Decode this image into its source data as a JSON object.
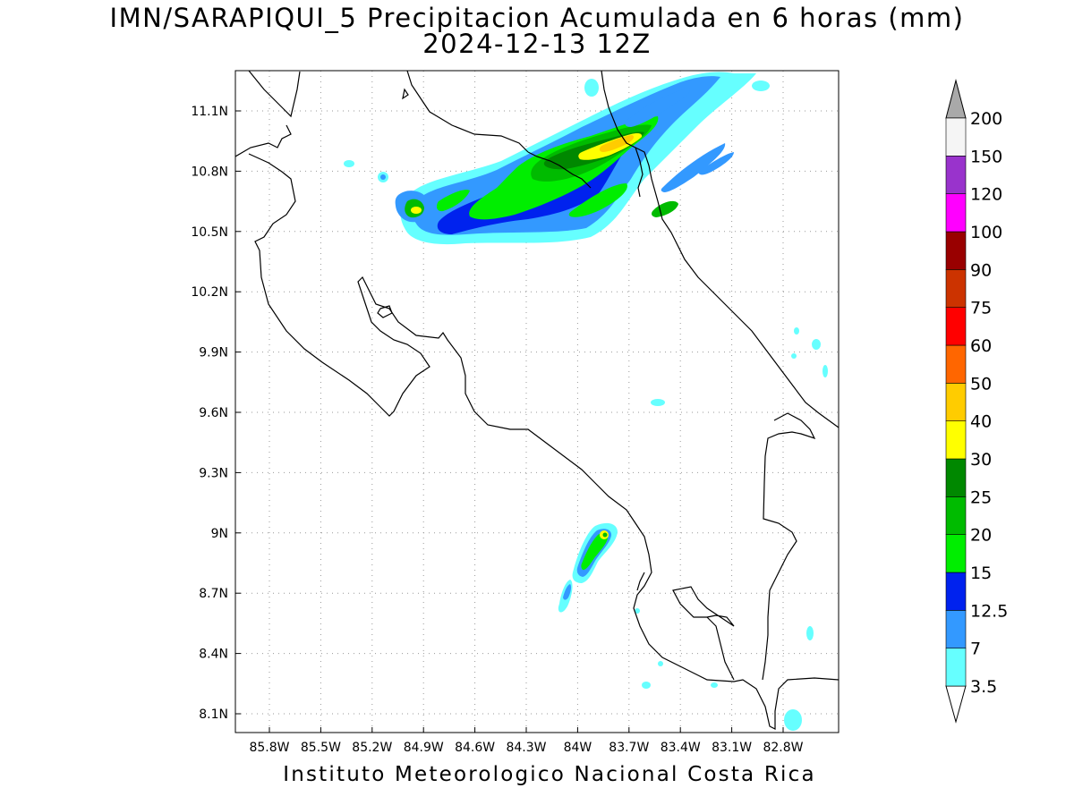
{
  "title": {
    "line1": "IMN/SARAPIQUI_5 Precipitacion Acumulada en 6 horas (mm)",
    "line2": "2024-12-13 12Z"
  },
  "footer": "Instituto Meteorologico Nacional Costa Rica",
  "map": {
    "lat_labels": [
      "11.1N",
      "10.8N",
      "10.5N",
      "10.2N",
      "9.9N",
      "9.6N",
      "9.3N",
      "9N",
      "8.7N",
      "8.4N",
      "8.1N"
    ],
    "lon_labels": [
      "85.8W",
      "85.5W",
      "85.2W",
      "84.9W",
      "84.6W",
      "84.3W",
      "84W",
      "83.7W",
      "83.4W",
      "83.1W",
      "82.8W"
    ]
  },
  "colorbar": {
    "labels": [
      "3.5",
      "7",
      "12.5",
      "15",
      "20",
      "25",
      "30",
      "40",
      "50",
      "60",
      "75",
      "90",
      "100",
      "120",
      "150",
      "200"
    ],
    "colors": [
      "#66ffff",
      "#3399ff",
      "#0022ee",
      "#00ee00",
      "#00bb00",
      "#008800",
      "#ffff00",
      "#ffcc00",
      "#ff6600",
      "#ff0000",
      "#cc3300",
      "#990000",
      "#ff00ff",
      "#9933cc",
      "#f5f5f5"
    ],
    "below_color": "#ffffff",
    "above_color": "#a9a9a9"
  },
  "legend_colors": {
    "c35": "#66ffff",
    "c7": "#3399ff",
    "c125": "#0022ee",
    "c15": "#00ee00",
    "c20": "#00bb00",
    "c25": "#008800",
    "c30": "#ffff00",
    "c40": "#ffcc00"
  }
}
